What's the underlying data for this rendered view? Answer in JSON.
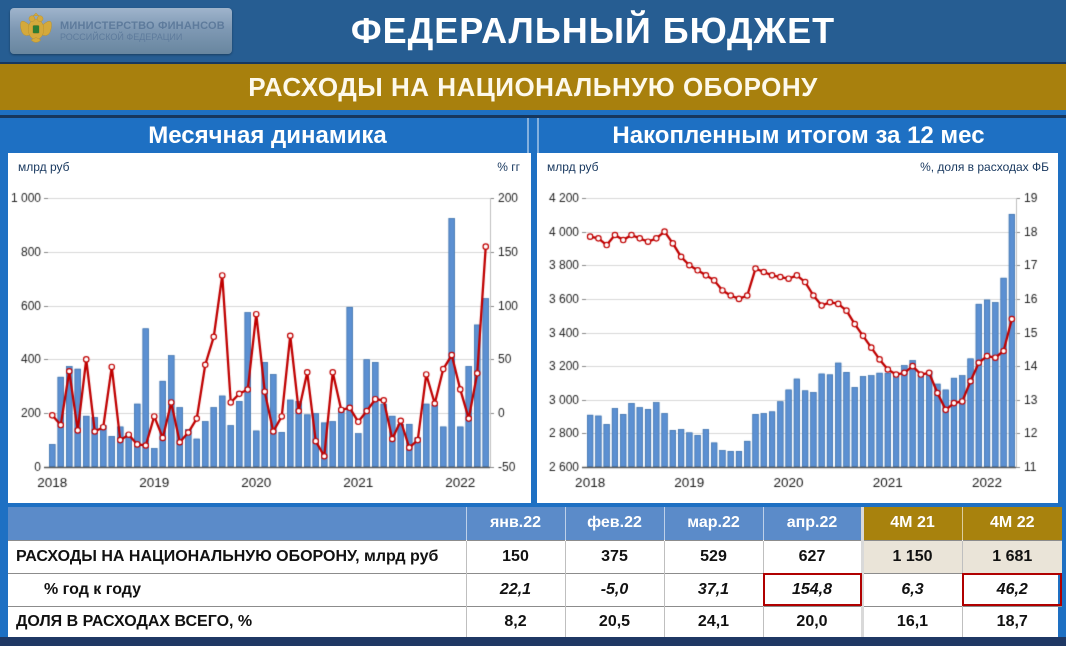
{
  "header": {
    "ministry_line1": "МИНИСТЕРСТВО ФИНАНСОВ",
    "ministry_line2": "РОССИЙСКОЙ ФЕДЕРАЦИИ",
    "title": "ФЕДЕРАЛЬНЫЙ БЮДЖЕТ"
  },
  "subtitle": "РАСХОДЫ НА НАЦИОНАЛЬНУЮ ОБОРОНУ",
  "colors": {
    "bar": "#5C90D2",
    "bar_border": "#3C6FA5",
    "line": "#C00000",
    "marker_fill": "#FFFFFF",
    "grid": "#D9D9D9",
    "axis_line": "#595959",
    "right_axis_line": "#BFBFBF",
    "tick_text": "#262626",
    "page_blue": "#1E70C3",
    "top_band": "#265D92",
    "gold": "#A8800D",
    "table_header_blue": "#5B8BC9",
    "beige": "#EAE4D8",
    "navy": "#1F3864",
    "highlight_box": "#B00000"
  },
  "chart_data": [
    {
      "type": "bar",
      "title": "Месячная динамика",
      "grid": true,
      "legend": "none",
      "months": [
        "2018-01",
        "2018-02",
        "2018-03",
        "2018-04",
        "2018-05",
        "2018-06",
        "2018-07",
        "2018-08",
        "2018-09",
        "2018-10",
        "2018-11",
        "2018-12",
        "2019-01",
        "2019-02",
        "2019-03",
        "2019-04",
        "2019-05",
        "2019-06",
        "2019-07",
        "2019-08",
        "2019-09",
        "2019-10",
        "2019-11",
        "2019-12",
        "2020-01",
        "2020-02",
        "2020-03",
        "2020-04",
        "2020-05",
        "2020-06",
        "2020-07",
        "2020-08",
        "2020-09",
        "2020-10",
        "2020-11",
        "2020-12",
        "2021-01",
        "2021-02",
        "2021-03",
        "2021-04",
        "2021-05",
        "2021-06",
        "2021-07",
        "2021-08",
        "2021-09",
        "2021-10",
        "2021-11",
        "2021-12",
        "2022-01",
        "2022-02",
        "2022-03",
        "2022-04"
      ],
      "x_tick_labels": [
        "2018",
        "2019",
        "2020",
        "2021",
        "2022"
      ],
      "left_axis": {
        "label": "млрд  руб",
        "min": 0,
        "max": 1000,
        "ticks": [
          "1 000",
          "800",
          "600",
          "400",
          "200",
          "0"
        ]
      },
      "right_axis": {
        "label": "% гг",
        "min": -50,
        "max": 200,
        "ticks": [
          "200",
          "150",
          "100",
          "50",
          "0",
          "-50"
        ]
      },
      "series": [
        {
          "name": "расходы, млрд руб",
          "type": "bar",
          "axis": "left",
          "values": [
            85,
            335,
            375,
            365,
            190,
            185,
            155,
            115,
            150,
            125,
            235,
            515,
            70,
            320,
            415,
            222,
            140,
            105,
            170,
            222,
            265,
            155,
            245,
            575,
            135,
            390,
            345,
            130,
            250,
            245,
            195,
            200,
            165,
            170,
            220,
            595,
            125,
            400,
            390,
            235,
            190,
            160,
            160,
            110,
            235,
            230,
            150,
            925,
            150,
            375,
            529,
            627
          ]
        },
        {
          "name": "% год к году",
          "type": "line",
          "axis": "right",
          "values": [
            -2,
            -11,
            39,
            -16,
            50,
            -17,
            -13,
            43,
            -25,
            -20,
            -29,
            -30,
            -3,
            -23,
            10,
            -27,
            -18,
            -5,
            45,
            71,
            128,
            10,
            18,
            22,
            92,
            20,
            -17,
            -3,
            72,
            2,
            38,
            -26,
            -40,
            38,
            3,
            5,
            -8,
            2,
            13,
            12,
            -24,
            -7,
            -32,
            -25,
            36,
            9,
            41,
            54,
            22.1,
            -5,
            37.1,
            154.8
          ]
        }
      ]
    },
    {
      "type": "bar",
      "title": "Накопленным итогом за 12 мес",
      "grid": true,
      "legend": "none",
      "months": [
        "2018-01",
        "2018-02",
        "2018-03",
        "2018-04",
        "2018-05",
        "2018-06",
        "2018-07",
        "2018-08",
        "2018-09",
        "2018-10",
        "2018-11",
        "2018-12",
        "2019-01",
        "2019-02",
        "2019-03",
        "2019-04",
        "2019-05",
        "2019-06",
        "2019-07",
        "2019-08",
        "2019-09",
        "2019-10",
        "2019-11",
        "2019-12",
        "2020-01",
        "2020-02",
        "2020-03",
        "2020-04",
        "2020-05",
        "2020-06",
        "2020-07",
        "2020-08",
        "2020-09",
        "2020-10",
        "2020-11",
        "2020-12",
        "2021-01",
        "2021-02",
        "2021-03",
        "2021-04",
        "2021-05",
        "2021-06",
        "2021-07",
        "2021-08",
        "2021-09",
        "2021-10",
        "2021-11",
        "2021-12",
        "2022-01",
        "2022-02",
        "2022-03",
        "2022-04"
      ],
      "x_tick_labels": [
        "2018",
        "2019",
        "2020",
        "2021",
        "2022"
      ],
      "left_axis": {
        "label": "млрд руб",
        "min": 2600,
        "max": 4200,
        "ticks": [
          "4 200",
          "4 000",
          "3 800",
          "3 600",
          "3 400",
          "3 200",
          "3 000",
          "2 800",
          "2 600"
        ]
      },
      "right_axis": {
        "label": "%, доля в расходах ФБ",
        "min": 11,
        "max": 19,
        "ticks": [
          "19",
          "18",
          "17",
          "16",
          "15",
          "14",
          "13",
          "12",
          "11"
        ]
      },
      "series": [
        {
          "name": "расходы за 12 мес, млрд руб",
          "type": "bar",
          "axis": "left",
          "values": [
            2910,
            2905,
            2855,
            2950,
            2915,
            2980,
            2955,
            2945,
            2985,
            2920,
            2820,
            2825,
            2805,
            2790,
            2825,
            2745,
            2700,
            2695,
            2695,
            2755,
            2915,
            2920,
            2930,
            2990,
            3060,
            3125,
            3055,
            3045,
            3155,
            3150,
            3220,
            3165,
            3075,
            3140,
            3145,
            3160,
            3160,
            3145,
            3205,
            3235,
            3145,
            3170,
            3095,
            3060,
            3130,
            3145,
            3245,
            3570,
            3595,
            3580,
            3725,
            4105
          ]
        },
        {
          "name": "доля в расходах ФБ, %",
          "type": "line",
          "axis": "right",
          "values": [
            17.85,
            17.8,
            17.6,
            17.9,
            17.75,
            17.9,
            17.8,
            17.7,
            17.8,
            18.0,
            17.65,
            17.25,
            17.0,
            16.85,
            16.7,
            16.55,
            16.25,
            16.1,
            16.0,
            16.1,
            16.9,
            16.8,
            16.7,
            16.65,
            16.6,
            16.7,
            16.5,
            16.1,
            15.8,
            15.9,
            15.85,
            15.65,
            15.25,
            14.9,
            14.55,
            14.2,
            13.9,
            13.75,
            13.8,
            14.0,
            13.75,
            13.8,
            13.2,
            12.7,
            12.9,
            12.95,
            13.55,
            14.1,
            14.3,
            14.25,
            14.45,
            15.4
          ]
        }
      ]
    }
  ],
  "table": {
    "columns": [
      "янв.22",
      "фев.22",
      "мар.22",
      "апр.22",
      "4М 21",
      "4М 22"
    ],
    "rows": [
      {
        "label": "РАСХОДЫ НА НАЦИОНАЛЬНУЮ ОБОРОНУ, млрд руб",
        "indent": false,
        "style": "bold",
        "values": [
          "150",
          "375",
          "529",
          "627",
          "1 150",
          "1 681"
        ],
        "highlight": []
      },
      {
        "label": "% год к году",
        "indent": true,
        "style": "italic",
        "values": [
          "22,1",
          "-5,0",
          "37,1",
          "154,8",
          "6,3",
          "46,2"
        ],
        "highlight": [
          3,
          5
        ]
      },
      {
        "label": "ДОЛЯ В РАСХОДАХ ВСЕГО, %",
        "indent": false,
        "style": "bold",
        "values": [
          "8,2",
          "20,5",
          "24,1",
          "20,0",
          "16,1",
          "18,7"
        ],
        "highlight": []
      }
    ]
  }
}
